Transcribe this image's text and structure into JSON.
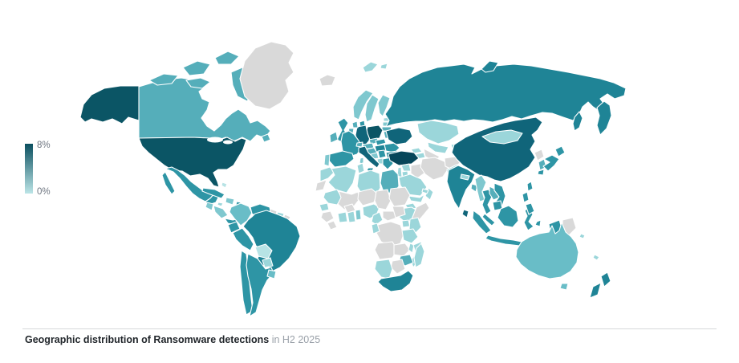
{
  "legend": {
    "max_label": "8%",
    "min_label": "0%",
    "gradient_top": "#0B4F5F",
    "gradient_bottom": "#BCE5E7"
  },
  "caption": {
    "bold": "Geographic distribution of Ransomware detections",
    "rest": " in H2 2025"
  },
  "map": {
    "title": "Geographic distribution of Ransomware detections in H2 2025",
    "no_data_color": "#D9D9D9",
    "palette": {
      "l8": "#06465A",
      "l7": "#0B5565",
      "l6": "#10657A",
      "l5": "#1F8496",
      "l4": "#2E95A5",
      "l3": "#55AEBA",
      "l2": "#69BDC7",
      "l1": "#7FC8CF",
      "l0_5": "#9BD6DA",
      "l0": "#B7E3E5"
    },
    "countries": [
      {
        "id": "us",
        "name": "United States",
        "level": "l7"
      },
      {
        "id": "ca",
        "name": "Canada",
        "level": "l3"
      },
      {
        "id": "gl",
        "name": "Greenland",
        "level": "nd"
      },
      {
        "id": "is",
        "name": "Iceland",
        "level": "nd"
      },
      {
        "id": "mx",
        "name": "Mexico",
        "level": "l4"
      },
      {
        "id": "gt",
        "name": "Guatemala",
        "level": "l1"
      },
      {
        "id": "hn",
        "name": "Honduras / Nicaragua",
        "level": "l1"
      },
      {
        "id": "cr",
        "name": "Costa Rica / Panama",
        "level": "l4"
      },
      {
        "id": "cu",
        "name": "Cuba",
        "level": "l4"
      },
      {
        "id": "ht",
        "name": "Hispaniola",
        "level": "l1"
      },
      {
        "id": "jm",
        "name": "Jamaica",
        "level": "l0_5"
      },
      {
        "id": "pr",
        "name": "Puerto Rico",
        "level": "l4"
      },
      {
        "id": "bs",
        "name": "Bahamas",
        "level": "l0"
      },
      {
        "id": "co",
        "name": "Colombia",
        "level": "l2"
      },
      {
        "id": "ve",
        "name": "Venezuela",
        "level": "l4"
      },
      {
        "id": "gy",
        "name": "Guyana",
        "level": "nd"
      },
      {
        "id": "sr",
        "name": "Suriname",
        "level": "l0_5"
      },
      {
        "id": "gf",
        "name": "French Guiana",
        "level": "nd"
      },
      {
        "id": "ec",
        "name": "Ecuador",
        "level": "l4"
      },
      {
        "id": "pe",
        "name": "Peru",
        "level": "l4"
      },
      {
        "id": "br",
        "name": "Brazil",
        "level": "l5"
      },
      {
        "id": "bo",
        "name": "Bolivia",
        "level": "l0"
      },
      {
        "id": "py",
        "name": "Paraguay",
        "level": "l0_5"
      },
      {
        "id": "cl",
        "name": "Chile",
        "level": "l4"
      },
      {
        "id": "ar",
        "name": "Argentina",
        "level": "l4"
      },
      {
        "id": "uy",
        "name": "Uruguay",
        "level": "l2"
      },
      {
        "id": "gb",
        "name": "United Kingdom",
        "level": "l4"
      },
      {
        "id": "ie",
        "name": "Ireland",
        "level": "l3"
      },
      {
        "id": "no",
        "name": "Norway",
        "level": "l1"
      },
      {
        "id": "se",
        "name": "Sweden",
        "level": "l1"
      },
      {
        "id": "fi",
        "name": "Finland",
        "level": "l1"
      },
      {
        "id": "dk",
        "name": "Denmark",
        "level": "l4"
      },
      {
        "id": "ee",
        "name": "Estonia",
        "level": "l0_5"
      },
      {
        "id": "lv",
        "name": "Latvia",
        "level": "l1"
      },
      {
        "id": "lt",
        "name": "Lithuania",
        "level": "l3"
      },
      {
        "id": "by",
        "name": "Belarus",
        "level": "l3"
      },
      {
        "id": "pl",
        "name": "Poland",
        "level": "l7"
      },
      {
        "id": "de",
        "name": "Germany",
        "level": "l6"
      },
      {
        "id": "nl",
        "name": "Netherlands",
        "level": "l3"
      },
      {
        "id": "be",
        "name": "Belgium",
        "level": "l3"
      },
      {
        "id": "fr",
        "name": "France",
        "level": "l4"
      },
      {
        "id": "es",
        "name": "Spain",
        "level": "l4"
      },
      {
        "id": "pt",
        "name": "Portugal",
        "level": "l1"
      },
      {
        "id": "ch",
        "name": "Switzerland",
        "level": "l3"
      },
      {
        "id": "cz",
        "name": "Czechia",
        "level": "l3"
      },
      {
        "id": "at",
        "name": "Austria",
        "level": "l3"
      },
      {
        "id": "sk",
        "name": "Slovakia",
        "level": "l4"
      },
      {
        "id": "hu",
        "name": "Hungary",
        "level": "l5"
      },
      {
        "id": "hr",
        "name": "Croatia",
        "level": "l3"
      },
      {
        "id": "ba",
        "name": "Bosnia and Herzegovina",
        "level": "l1"
      },
      {
        "id": "rs",
        "name": "Serbia",
        "level": "l4"
      },
      {
        "id": "al",
        "name": "Albania / North Macedonia",
        "level": "l0_5"
      },
      {
        "id": "ro",
        "name": "Romania",
        "level": "l4"
      },
      {
        "id": "bg",
        "name": "Bulgaria",
        "level": "l5"
      },
      {
        "id": "gr",
        "name": "Greece",
        "level": "l4"
      },
      {
        "id": "md",
        "name": "Moldova",
        "level": "l0_5"
      },
      {
        "id": "ua",
        "name": "Ukraine",
        "level": "l6"
      },
      {
        "id": "it",
        "name": "Italy",
        "level": "l6"
      },
      {
        "id": "it-sicily",
        "name": "Sicily (Italy)",
        "level": "l4"
      },
      {
        "id": "it-sardinia",
        "name": "Sardinia (Italy)",
        "level": "l1"
      },
      {
        "id": "ru",
        "name": "Russia",
        "level": "l5"
      },
      {
        "id": "sj",
        "name": "Svalbard",
        "level": "l0_5"
      },
      {
        "id": "kz",
        "name": "Kazakhstan",
        "level": "l0_5"
      },
      {
        "id": "uz",
        "name": "Uzbekistan",
        "level": "l0_5"
      },
      {
        "id": "tm",
        "name": "Turkmenistan",
        "level": "nd"
      },
      {
        "id": "kg",
        "name": "Kyrgyzstan",
        "level": "l0_5"
      },
      {
        "id": "tj",
        "name": "Tajikistan",
        "level": "l0_5"
      },
      {
        "id": "ge",
        "name": "Georgia",
        "level": "l0_5"
      },
      {
        "id": "az",
        "name": "Azerbaijan / Armenia",
        "level": "l0_5"
      },
      {
        "id": "tr",
        "name": "Turkey",
        "level": "l8"
      },
      {
        "id": "sy",
        "name": "Syria",
        "level": "l0_5"
      },
      {
        "id": "il",
        "name": "Israel / Lebanon",
        "level": "l0_5"
      },
      {
        "id": "jo",
        "name": "Jordan",
        "level": "l0_5"
      },
      {
        "id": "iq",
        "name": "Iraq",
        "level": "nd"
      },
      {
        "id": "ir",
        "name": "Iran",
        "level": "nd"
      },
      {
        "id": "af",
        "name": "Afghanistan",
        "level": "nd"
      },
      {
        "id": "pk",
        "name": "Pakistan",
        "level": "l0_5"
      },
      {
        "id": "sa",
        "name": "Saudi Arabia",
        "level": "l0_5"
      },
      {
        "id": "ye",
        "name": "Yemen",
        "level": "l0_5"
      },
      {
        "id": "om",
        "name": "Oman",
        "level": "l0_5"
      },
      {
        "id": "ae",
        "name": "United Arab Emirates",
        "level": "l0_5"
      },
      {
        "id": "in",
        "name": "India",
        "level": "l5"
      },
      {
        "id": "np",
        "name": "Nepal",
        "level": "l0_5"
      },
      {
        "id": "bd",
        "name": "Bangladesh",
        "level": "l3"
      },
      {
        "id": "lk",
        "name": "Sri Lanka",
        "level": "l6"
      },
      {
        "id": "mm",
        "name": "Myanmar",
        "level": "l1"
      },
      {
        "id": "th",
        "name": "Thailand",
        "level": "l4"
      },
      {
        "id": "la",
        "name": "Laos",
        "level": "l3"
      },
      {
        "id": "vn",
        "name": "Vietnam",
        "level": "l4"
      },
      {
        "id": "kh",
        "name": "Cambodia",
        "level": "l4"
      },
      {
        "id": "my",
        "name": "Malaysia",
        "level": "l4"
      },
      {
        "id": "id",
        "name": "Indonesia",
        "level": "l4"
      },
      {
        "id": "ph",
        "name": "Philippines",
        "level": "l4"
      },
      {
        "id": "tw",
        "name": "Taiwan",
        "level": "l4"
      },
      {
        "id": "cn",
        "name": "China",
        "level": "l6"
      },
      {
        "id": "mn",
        "name": "Mongolia",
        "level": "l0_5"
      },
      {
        "id": "kp",
        "name": "North Korea",
        "level": "nd"
      },
      {
        "id": "kr",
        "name": "South Korea",
        "level": "l3"
      },
      {
        "id": "jp",
        "name": "Japan",
        "level": "l4"
      },
      {
        "id": "pg",
        "name": "Papua New Guinea",
        "level": "nd"
      },
      {
        "id": "sb",
        "name": "Solomon Islands",
        "level": "l0_5"
      },
      {
        "id": "nc",
        "name": "New Caledonia",
        "level": "l0_5"
      },
      {
        "id": "au",
        "name": "Australia",
        "level": "l2"
      },
      {
        "id": "nz",
        "name": "New Zealand",
        "level": "l5"
      },
      {
        "id": "ma",
        "name": "Morocco",
        "level": "l0_5"
      },
      {
        "id": "eh",
        "name": "Western Sahara",
        "level": "nd"
      },
      {
        "id": "dz",
        "name": "Algeria",
        "level": "l0_5"
      },
      {
        "id": "tn",
        "name": "Tunisia",
        "level": "l0_5"
      },
      {
        "id": "ly",
        "name": "Libya",
        "level": "l0_5"
      },
      {
        "id": "eg",
        "name": "Egypt",
        "level": "l3"
      },
      {
        "id": "mr",
        "name": "Mauritania",
        "level": "l0_5"
      },
      {
        "id": "sn",
        "name": "Senegal",
        "level": "l0_5"
      },
      {
        "id": "gn",
        "name": "Guinea",
        "level": "nd"
      },
      {
        "id": "sl",
        "name": "Sierra Leone / Liberia",
        "level": "nd"
      },
      {
        "id": "ml",
        "name": "Mali",
        "level": "nd"
      },
      {
        "id": "bf",
        "name": "Burkina Faso",
        "level": "nd"
      },
      {
        "id": "ci",
        "name": "Côte d'Ivoire",
        "level": "l0_5"
      },
      {
        "id": "gh",
        "name": "Ghana",
        "level": "l0_5"
      },
      {
        "id": "bj",
        "name": "Benin / Togo",
        "level": "l1"
      },
      {
        "id": "ne",
        "name": "Niger",
        "level": "nd"
      },
      {
        "id": "ng",
        "name": "Nigeria",
        "level": "l0_5"
      },
      {
        "id": "td",
        "name": "Chad",
        "level": "nd"
      },
      {
        "id": "sd",
        "name": "Sudan",
        "level": "nd"
      },
      {
        "id": "er",
        "name": "Eritrea",
        "level": "l0_5"
      },
      {
        "id": "et",
        "name": "Ethiopia",
        "level": "l0_5"
      },
      {
        "id": "so",
        "name": "Somalia",
        "level": "nd"
      },
      {
        "id": "cm",
        "name": "Cameroon",
        "level": "l0_5"
      },
      {
        "id": "cf",
        "name": "Central African Republic",
        "level": "nd"
      },
      {
        "id": "ss",
        "name": "South Sudan",
        "level": "nd"
      },
      {
        "id": "cd",
        "name": "DR Congo",
        "level": "nd"
      },
      {
        "id": "cg",
        "name": "Gabon / Congo",
        "level": "l0_5"
      },
      {
        "id": "ug",
        "name": "Uganda",
        "level": "l0_5"
      },
      {
        "id": "ke",
        "name": "Kenya",
        "level": "l0_5"
      },
      {
        "id": "tz",
        "name": "Tanzania",
        "level": "l0_5"
      },
      {
        "id": "ao",
        "name": "Angola",
        "level": "nd"
      },
      {
        "id": "zm",
        "name": "Zambia",
        "level": "nd"
      },
      {
        "id": "mw",
        "name": "Malawi",
        "level": "l0_5"
      },
      {
        "id": "mz",
        "name": "Mozambique",
        "level": "l0_5"
      },
      {
        "id": "zw",
        "name": "Zimbabwe",
        "level": "l3"
      },
      {
        "id": "bw",
        "name": "Botswana",
        "level": "nd"
      },
      {
        "id": "na",
        "name": "Namibia",
        "level": "l0_5"
      },
      {
        "id": "za",
        "name": "South Africa",
        "level": "l5"
      },
      {
        "id": "mg",
        "name": "Madagascar",
        "level": "l0_5"
      }
    ]
  },
  "chart_data": {
    "type": "heatmap",
    "title": "Geographic distribution of Ransomware detections in H2 2025",
    "legend": {
      "max": "8%",
      "min": "0%",
      "position": "left"
    },
    "notes": "choropleth world map; darker teal = higher share of ransomware detections; gray = no data",
    "highest": [
      "United States",
      "Turkey",
      "Poland"
    ],
    "high": [
      "China",
      "Germany",
      "Ukraine",
      "Italy",
      "Sri Lanka"
    ],
    "medium_high": [
      "Russia",
      "Brazil",
      "India",
      "South Africa",
      "Hungary",
      "Bulgaria",
      "New Zealand"
    ],
    "medium": [
      "Mexico",
      "Peru",
      "Chile",
      "Argentina",
      "Venezuela",
      "France",
      "United Kingdom",
      "Spain",
      "Romania",
      "Greece",
      "Japan",
      "Thailand",
      "Vietnam",
      "Indonesia",
      "Philippines",
      "Cuba",
      "Egypt"
    ],
    "low": [
      "Canada",
      "Australia",
      "Colombia",
      "Norway",
      "Sweden",
      "Finland",
      "Kazakhstan",
      "Mongolia",
      "Algeria",
      "Libya",
      "Saudi Arabia",
      "Morocco",
      "Pakistan",
      "Kenya",
      "Tanzania",
      "Ethiopia",
      "Madagascar",
      "Bolivia"
    ],
    "no_data": [
      "Greenland",
      "Iceland",
      "Iran",
      "Iraq",
      "Afghanistan",
      "Mali",
      "Niger",
      "Chad",
      "Sudan",
      "Somalia",
      "DR Congo",
      "Angola",
      "Zambia",
      "Botswana",
      "Guyana",
      "Papua New Guinea",
      "North Korea",
      "Turkmenistan"
    ]
  }
}
